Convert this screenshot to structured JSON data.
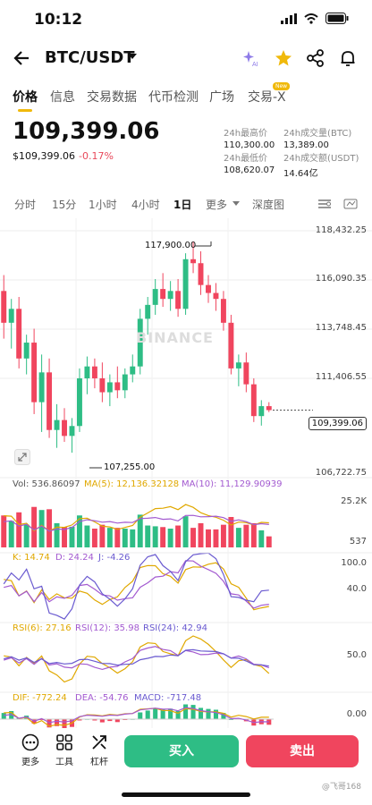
{
  "status": {
    "time": "10:12"
  },
  "header": {
    "pair": "BTC/USDT"
  },
  "tabs": [
    "价格",
    "信息",
    "交易数据",
    "代币检测",
    "广场",
    "交易-X"
  ],
  "tabs_badge": "New",
  "price": {
    "main": "109,399.06",
    "usd": "$109,399.06",
    "change": "-0.17%"
  },
  "stats": {
    "high_label": "24h最高价",
    "high": "110,300.00",
    "vol_label": "24h成交量(BTC)",
    "vol": "13,389.00",
    "low_label": "24h最低价",
    "low": "108,620.07",
    "amount_label": "24h成交额(USDT)",
    "amount": "14.64亿"
  },
  "timeframes": [
    "分时",
    "15分",
    "1小时",
    "4小时",
    "1日",
    "更多",
    "深度图"
  ],
  "chart": {
    "y_labels": [
      "118,432.25",
      "116,090.35",
      "113,748.45",
      "111,406.55",
      "106,722.75"
    ],
    "current": "109,399.06",
    "high_mark": "117,900.00",
    "low_mark": "107,255.00",
    "watermark": "BINANCE"
  },
  "vol": {
    "label": "Vol: 536.86097",
    "ma5": "MA(5): 12,136.32128",
    "ma10": "MA(10): 11,129.90939",
    "y_top": "25.2K",
    "y_bot": "537"
  },
  "kdj": {
    "k": "K: 14.74",
    "d": "D: 24.24",
    "j": "J: -4.26",
    "y_top": "100.0",
    "y_mid": "40.0"
  },
  "rsi": {
    "r6": "RSI(6): 27.16",
    "r12": "RSI(12): 35.98",
    "r24": "RSI(24): 42.94",
    "y_mid": "50.0"
  },
  "macd": {
    "dif": "DIF: -772.24",
    "dea": "DEA: -54.76",
    "macd": "MACD: -717.48",
    "y_mid": "0.00"
  },
  "bottom": {
    "more": "更多",
    "tools": "工具",
    "leverage": "杠杆",
    "buy": "买入",
    "sell": "卖出"
  },
  "watermark_text": "@飞哥168",
  "colors": {
    "up": "#2ebd85",
    "down": "#f0455e",
    "accent": "#f0b90b"
  },
  "chart_data": {
    "type": "candlestick",
    "candles": [
      {
        "o": 115400,
        "h": 116200,
        "l": 113000,
        "c": 113800
      },
      {
        "o": 113800,
        "h": 115000,
        "l": 112500,
        "c": 114500
      },
      {
        "o": 114500,
        "h": 115100,
        "l": 111500,
        "c": 112000
      },
      {
        "o": 112000,
        "h": 113200,
        "l": 111200,
        "c": 112800
      },
      {
        "o": 112800,
        "h": 113500,
        "l": 109200,
        "c": 109800
      },
      {
        "o": 109800,
        "h": 112200,
        "l": 108300,
        "c": 111300
      },
      {
        "o": 111300,
        "h": 112000,
        "l": 108000,
        "c": 108400
      },
      {
        "o": 108400,
        "h": 109700,
        "l": 107500,
        "c": 108900
      },
      {
        "o": 108900,
        "h": 109500,
        "l": 107800,
        "c": 108100
      },
      {
        "o": 108100,
        "h": 109000,
        "l": 107255,
        "c": 108600
      },
      {
        "o": 108600,
        "h": 111500,
        "l": 108300,
        "c": 111000
      },
      {
        "o": 111000,
        "h": 112100,
        "l": 110200,
        "c": 111600
      },
      {
        "o": 111600,
        "h": 112000,
        "l": 110500,
        "c": 111000
      },
      {
        "o": 111000,
        "h": 111800,
        "l": 109800,
        "c": 110300
      },
      {
        "o": 110300,
        "h": 111200,
        "l": 109600,
        "c": 110800
      },
      {
        "o": 110800,
        "h": 111600,
        "l": 110000,
        "c": 110400
      },
      {
        "o": 110400,
        "h": 111500,
        "l": 110000,
        "c": 111200
      },
      {
        "o": 111200,
        "h": 112200,
        "l": 110800,
        "c": 111600
      },
      {
        "o": 111600,
        "h": 114500,
        "l": 111200,
        "c": 114000
      },
      {
        "o": 114000,
        "h": 115100,
        "l": 113200,
        "c": 114700
      },
      {
        "o": 114700,
        "h": 116000,
        "l": 114200,
        "c": 115500
      },
      {
        "o": 115500,
        "h": 116300,
        "l": 114600,
        "c": 115000
      },
      {
        "o": 115000,
        "h": 115900,
        "l": 114400,
        "c": 115400
      },
      {
        "o": 115400,
        "h": 116000,
        "l": 114100,
        "c": 114500
      },
      {
        "o": 114500,
        "h": 117300,
        "l": 114200,
        "c": 117000
      },
      {
        "o": 117000,
        "h": 117900,
        "l": 116300,
        "c": 116800
      },
      {
        "o": 116800,
        "h": 117400,
        "l": 115200,
        "c": 115700
      },
      {
        "o": 115700,
        "h": 116200,
        "l": 114800,
        "c": 115300
      },
      {
        "o": 115300,
        "h": 115800,
        "l": 114400,
        "c": 115000
      },
      {
        "o": 115000,
        "h": 115400,
        "l": 113400,
        "c": 113800
      },
      {
        "o": 113800,
        "h": 114200,
        "l": 111200,
        "c": 111500
      },
      {
        "o": 111500,
        "h": 112200,
        "l": 110600,
        "c": 111800
      },
      {
        "o": 111800,
        "h": 112300,
        "l": 110300,
        "c": 110700
      },
      {
        "o": 110700,
        "h": 111000,
        "l": 108800,
        "c": 109100
      },
      {
        "o": 109100,
        "h": 109900,
        "l": 108620,
        "c": 109600
      },
      {
        "o": 109600,
        "h": 109800,
        "l": 109300,
        "c": 109399
      }
    ],
    "y_range": [
      106000,
      118432.25
    ]
  }
}
